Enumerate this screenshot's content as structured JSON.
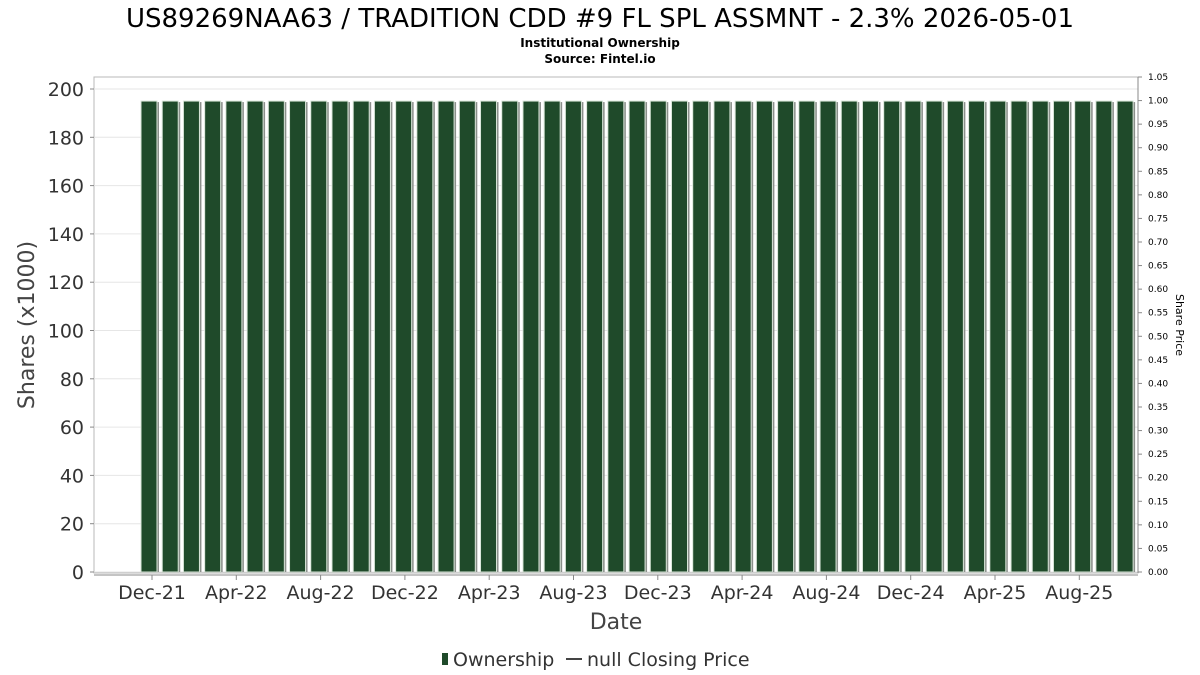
{
  "chart_data": {
    "type": "bar",
    "title": "US89269NAA63 / TRADITION CDD #9 FL SPL ASSMNT - 2.3% 2026-05-01",
    "subtitle_lines": [
      "Institutional Ownership",
      "Source: Fintel.io"
    ],
    "xlabel": "Date",
    "ylabel": "Shares (x1000)",
    "ylabel_right": "Share Price",
    "ylim": [
      0,
      205
    ],
    "ylim_right": [
      0,
      1.05
    ],
    "yticks": [
      "0",
      "20",
      "40",
      "60",
      "80",
      "100",
      "120",
      "140",
      "160",
      "180",
      "200"
    ],
    "yticks_right": [
      "0.00",
      "0.05",
      "0.10",
      "0.15",
      "0.20",
      "0.25",
      "0.30",
      "0.35",
      "0.40",
      "0.45",
      "0.50",
      "0.55",
      "0.60",
      "0.65",
      "0.70",
      "0.75",
      "0.80",
      "0.85",
      "0.90",
      "0.95",
      "1.00",
      "1.05"
    ],
    "xticks": [
      "Dec-21",
      "Apr-22",
      "Aug-22",
      "Dec-22",
      "Apr-23",
      "Aug-23",
      "Dec-23",
      "Apr-24",
      "Aug-24",
      "Dec-24",
      "Apr-25",
      "Aug-25"
    ],
    "grid": true,
    "legend_position": "bottom",
    "series": [
      {
        "name": "Ownership",
        "color": "#1f4a2a",
        "values": [
          195,
          195,
          195,
          195,
          195,
          195,
          195,
          195,
          195,
          195,
          195,
          195,
          195,
          195,
          195,
          195,
          195,
          195,
          195,
          195,
          195,
          195,
          195,
          195,
          195,
          195,
          195,
          195,
          195,
          195,
          195,
          195,
          195,
          195,
          195,
          195,
          195,
          195,
          195,
          195,
          195,
          195,
          195,
          195,
          195,
          195,
          195
        ]
      },
      {
        "name": "null Closing Price",
        "color": "#444444",
        "values": []
      }
    ]
  }
}
